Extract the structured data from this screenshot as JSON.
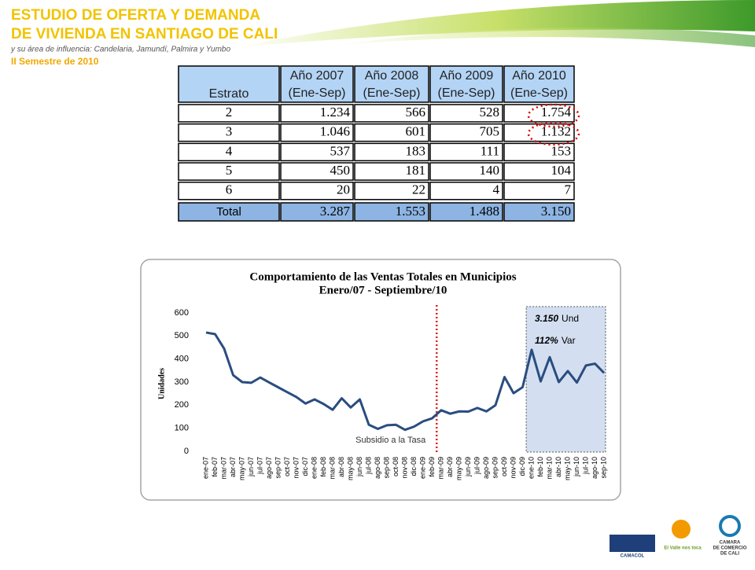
{
  "header": {
    "title_line1": "ESTUDIO DE OFERTA Y DEMANDA",
    "title_line2": "DE VIVIENDA EN SANTIAGO DE CALI",
    "subtitle": "y su área de influencia: Candelaria, Jamundí, Palmira y Yumbo",
    "period": "II Semestre de 2010"
  },
  "table": {
    "header": [
      [
        "Estrato"
      ],
      [
        "Año 2007",
        "(Ene-Sep)"
      ],
      [
        "Año 2008",
        "(Ene-Sep)"
      ],
      [
        "Año 2009",
        "(Ene-Sep)"
      ],
      [
        "Año 2010",
        "(Ene-Sep)"
      ]
    ],
    "rows": [
      [
        "2",
        "1.234",
        "566",
        "528",
        "1.754"
      ],
      [
        "3",
        "1.046",
        "601",
        "705",
        "1.132"
      ],
      [
        "4",
        "537",
        "183",
        "111",
        "153"
      ],
      [
        "5",
        "450",
        "181",
        "140",
        "104"
      ],
      [
        "6",
        "20",
        "22",
        "4",
        "7"
      ]
    ],
    "total": [
      "Total",
      "3.287",
      "1.553",
      "1.488",
      "3.150"
    ]
  },
  "chart_data": {
    "type": "line",
    "title": "Comportamiento de las Ventas Totales en Municipios",
    "subtitle": "Enero/07 - Septiembre/10",
    "y_label": "Unidades",
    "annotation_value": "3.150",
    "annotation_unit": "Und",
    "annotation_pct": "112%",
    "annotation_pct_unit": "Var",
    "marker_label": "Subsidio a la Tasa",
    "categories": [
      "ene-07",
      "feb-07",
      "mar-07",
      "abr-07",
      "may-07",
      "jun-07",
      "jul-07",
      "ago-07",
      "sep-07",
      "oct-07",
      "nov-07",
      "dic-07",
      "ene-08",
      "feb-08",
      "mar-08",
      "abr-08",
      "may-08",
      "jun-08",
      "jul-08",
      "ago-08",
      "sep-08",
      "oct-08",
      "nov-08",
      "dic-08",
      "ene-09",
      "feb-09",
      "mar-09",
      "abr-09",
      "may-09",
      "jun-09",
      "jul-09",
      "ago-09",
      "sep-09",
      "oct-09",
      "nov-09",
      "dic-09",
      "ene-10",
      "feb-10",
      "mar-10",
      "abr-10",
      "may-10",
      "jun-10",
      "jul-10",
      "ago-10",
      "sep-10"
    ],
    "series": [
      {
        "name": "Unidades",
        "color": "#2a4d80",
        "values": [
          515,
          508,
          445,
          330,
          300,
          297,
          320,
          298,
          277,
          256,
          235,
          207,
          225,
          205,
          180,
          230,
          190,
          225,
          115,
          97,
          113,
          115,
          93,
          107,
          130,
          143,
          178,
          163,
          173,
          172,
          188,
          173,
          200,
          322,
          252,
          278,
          440,
          303,
          408,
          300,
          348,
          298,
          372,
          380,
          340
        ]
      }
    ],
    "ylim": [
      0,
      600
    ],
    "yticks": [
      0,
      100,
      200,
      300,
      400,
      500,
      600
    ]
  },
  "logos": {
    "camacol": "CAMACOL",
    "valle": "El Valle nos toca",
    "camara_line1": "CAMARA",
    "camara_line2": "DE COMERCIO",
    "camara_line3": "DE CALI"
  }
}
